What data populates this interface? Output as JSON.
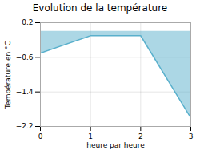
{
  "chart_data": {
    "type": "line",
    "title": "Evolution de la température",
    "xlabel": "heure par heure",
    "ylabel": "Température en °C",
    "x": [
      0,
      1,
      2,
      3
    ],
    "values": [
      -0.5,
      -0.1,
      -0.1,
      -2.0
    ],
    "color": "#5ab0cc",
    "xlim": [
      0,
      3
    ],
    "xticks": [
      0,
      1,
      2,
      3
    ],
    "ylim": [
      -2.2,
      0.2
    ],
    "yticks": [
      0.2,
      -0.6,
      -1.4,
      -2.2
    ],
    "grid": true
  }
}
